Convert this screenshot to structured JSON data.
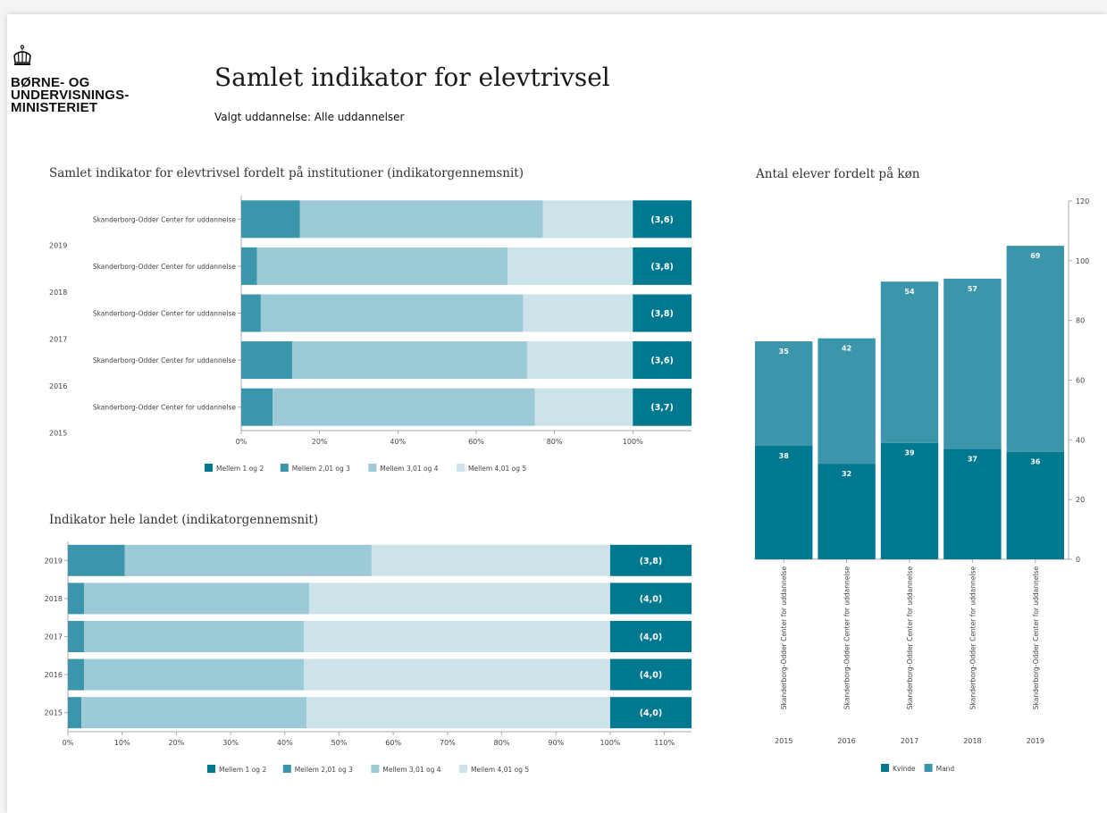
{
  "header": {
    "logo_lines": [
      "BØRNE- OG",
      "UNDERVISNINGS-",
      "MINISTERIET"
    ],
    "title": "Samlet indikator for elevtrivsel",
    "subtitle": "Valgt uddannelse: Alle uddannelser"
  },
  "colors": {
    "cat1": "#00788f",
    "cat2": "#3b96ab",
    "cat3": "#9ccad6",
    "cat4": "#cce3ea",
    "avg_bg": "#00788f",
    "kvinde": "#00788f",
    "mand": "#3b96ab"
  },
  "chart_data": [
    {
      "type": "bar",
      "orientation": "horizontal",
      "stacked": "percent",
      "title": "Samlet indikator for elevtrivsel fordelt på institutioner (indikatorgennemsnit)",
      "institution": "Skanderborg-Odder Center for uddannelse",
      "categories": [
        "2019",
        "2018",
        "2017",
        "2016",
        "2015"
      ],
      "series": [
        {
          "name": "Mellem 1 og 2",
          "values": [
            0,
            0,
            0,
            0,
            0
          ]
        },
        {
          "name": "Mellem 2,01 og 3",
          "values": [
            15,
            4,
            5,
            13,
            8
          ]
        },
        {
          "name": "Mellem 3,01 og 4",
          "values": [
            62,
            64,
            67,
            60,
            67
          ]
        },
        {
          "name": "Mellem 4,01 og 5",
          "values": [
            23,
            32,
            28,
            27,
            25
          ]
        }
      ],
      "averages": [
        "(3,6)",
        "(3,8)",
        "(3,8)",
        "(3,6)",
        "(3,7)"
      ],
      "x_ticks": [
        "0%",
        "20%",
        "40%",
        "60%",
        "80%",
        "100%"
      ],
      "xlim": [
        0,
        115
      ],
      "legend": "bottom"
    },
    {
      "type": "bar",
      "orientation": "horizontal",
      "stacked": "percent",
      "title": "Indikator hele landet (indikatorgennemsnit)",
      "categories": [
        "2019",
        "2018",
        "2017",
        "2016",
        "2015"
      ],
      "series": [
        {
          "name": "Mellem 1 og 2",
          "values": [
            0,
            0,
            0,
            0,
            0
          ]
        },
        {
          "name": "Mellem 2,01 og 3",
          "values": [
            10.5,
            3,
            3,
            3,
            2.5
          ]
        },
        {
          "name": "Mellem 3,01 og 4",
          "values": [
            45.5,
            41.5,
            40.5,
            40.5,
            41.5
          ]
        },
        {
          "name": "Mellem 4,01 og 5",
          "values": [
            44,
            55.5,
            56.5,
            56.5,
            56
          ]
        }
      ],
      "averages": [
        "(3,8)",
        "(4,0)",
        "(4,0)",
        "(4,0)",
        "(4,0)"
      ],
      "x_ticks": [
        "0%",
        "10%",
        "20%",
        "30%",
        "40%",
        "50%",
        "60%",
        "70%",
        "80%",
        "90%",
        "100%",
        "110%"
      ],
      "xlim": [
        0,
        115
      ],
      "legend": "bottom"
    },
    {
      "type": "bar",
      "orientation": "vertical",
      "stacked": true,
      "title": "Antal elever fordelt på køn",
      "institution": "Skanderborg-Odder Center for uddannelse",
      "categories": [
        "2015",
        "2016",
        "2017",
        "2018",
        "2019"
      ],
      "series": [
        {
          "name": "Kvinde",
          "values": [
            38,
            32,
            39,
            37,
            36
          ]
        },
        {
          "name": "Mand",
          "values": [
            35,
            42,
            54,
            57,
            69
          ]
        }
      ],
      "y_ticks": [
        "0",
        "20",
        "40",
        "60",
        "80",
        "100",
        "120"
      ],
      "ylim": [
        0,
        120
      ],
      "y_axis_side": "right",
      "legend": "bottom"
    }
  ]
}
